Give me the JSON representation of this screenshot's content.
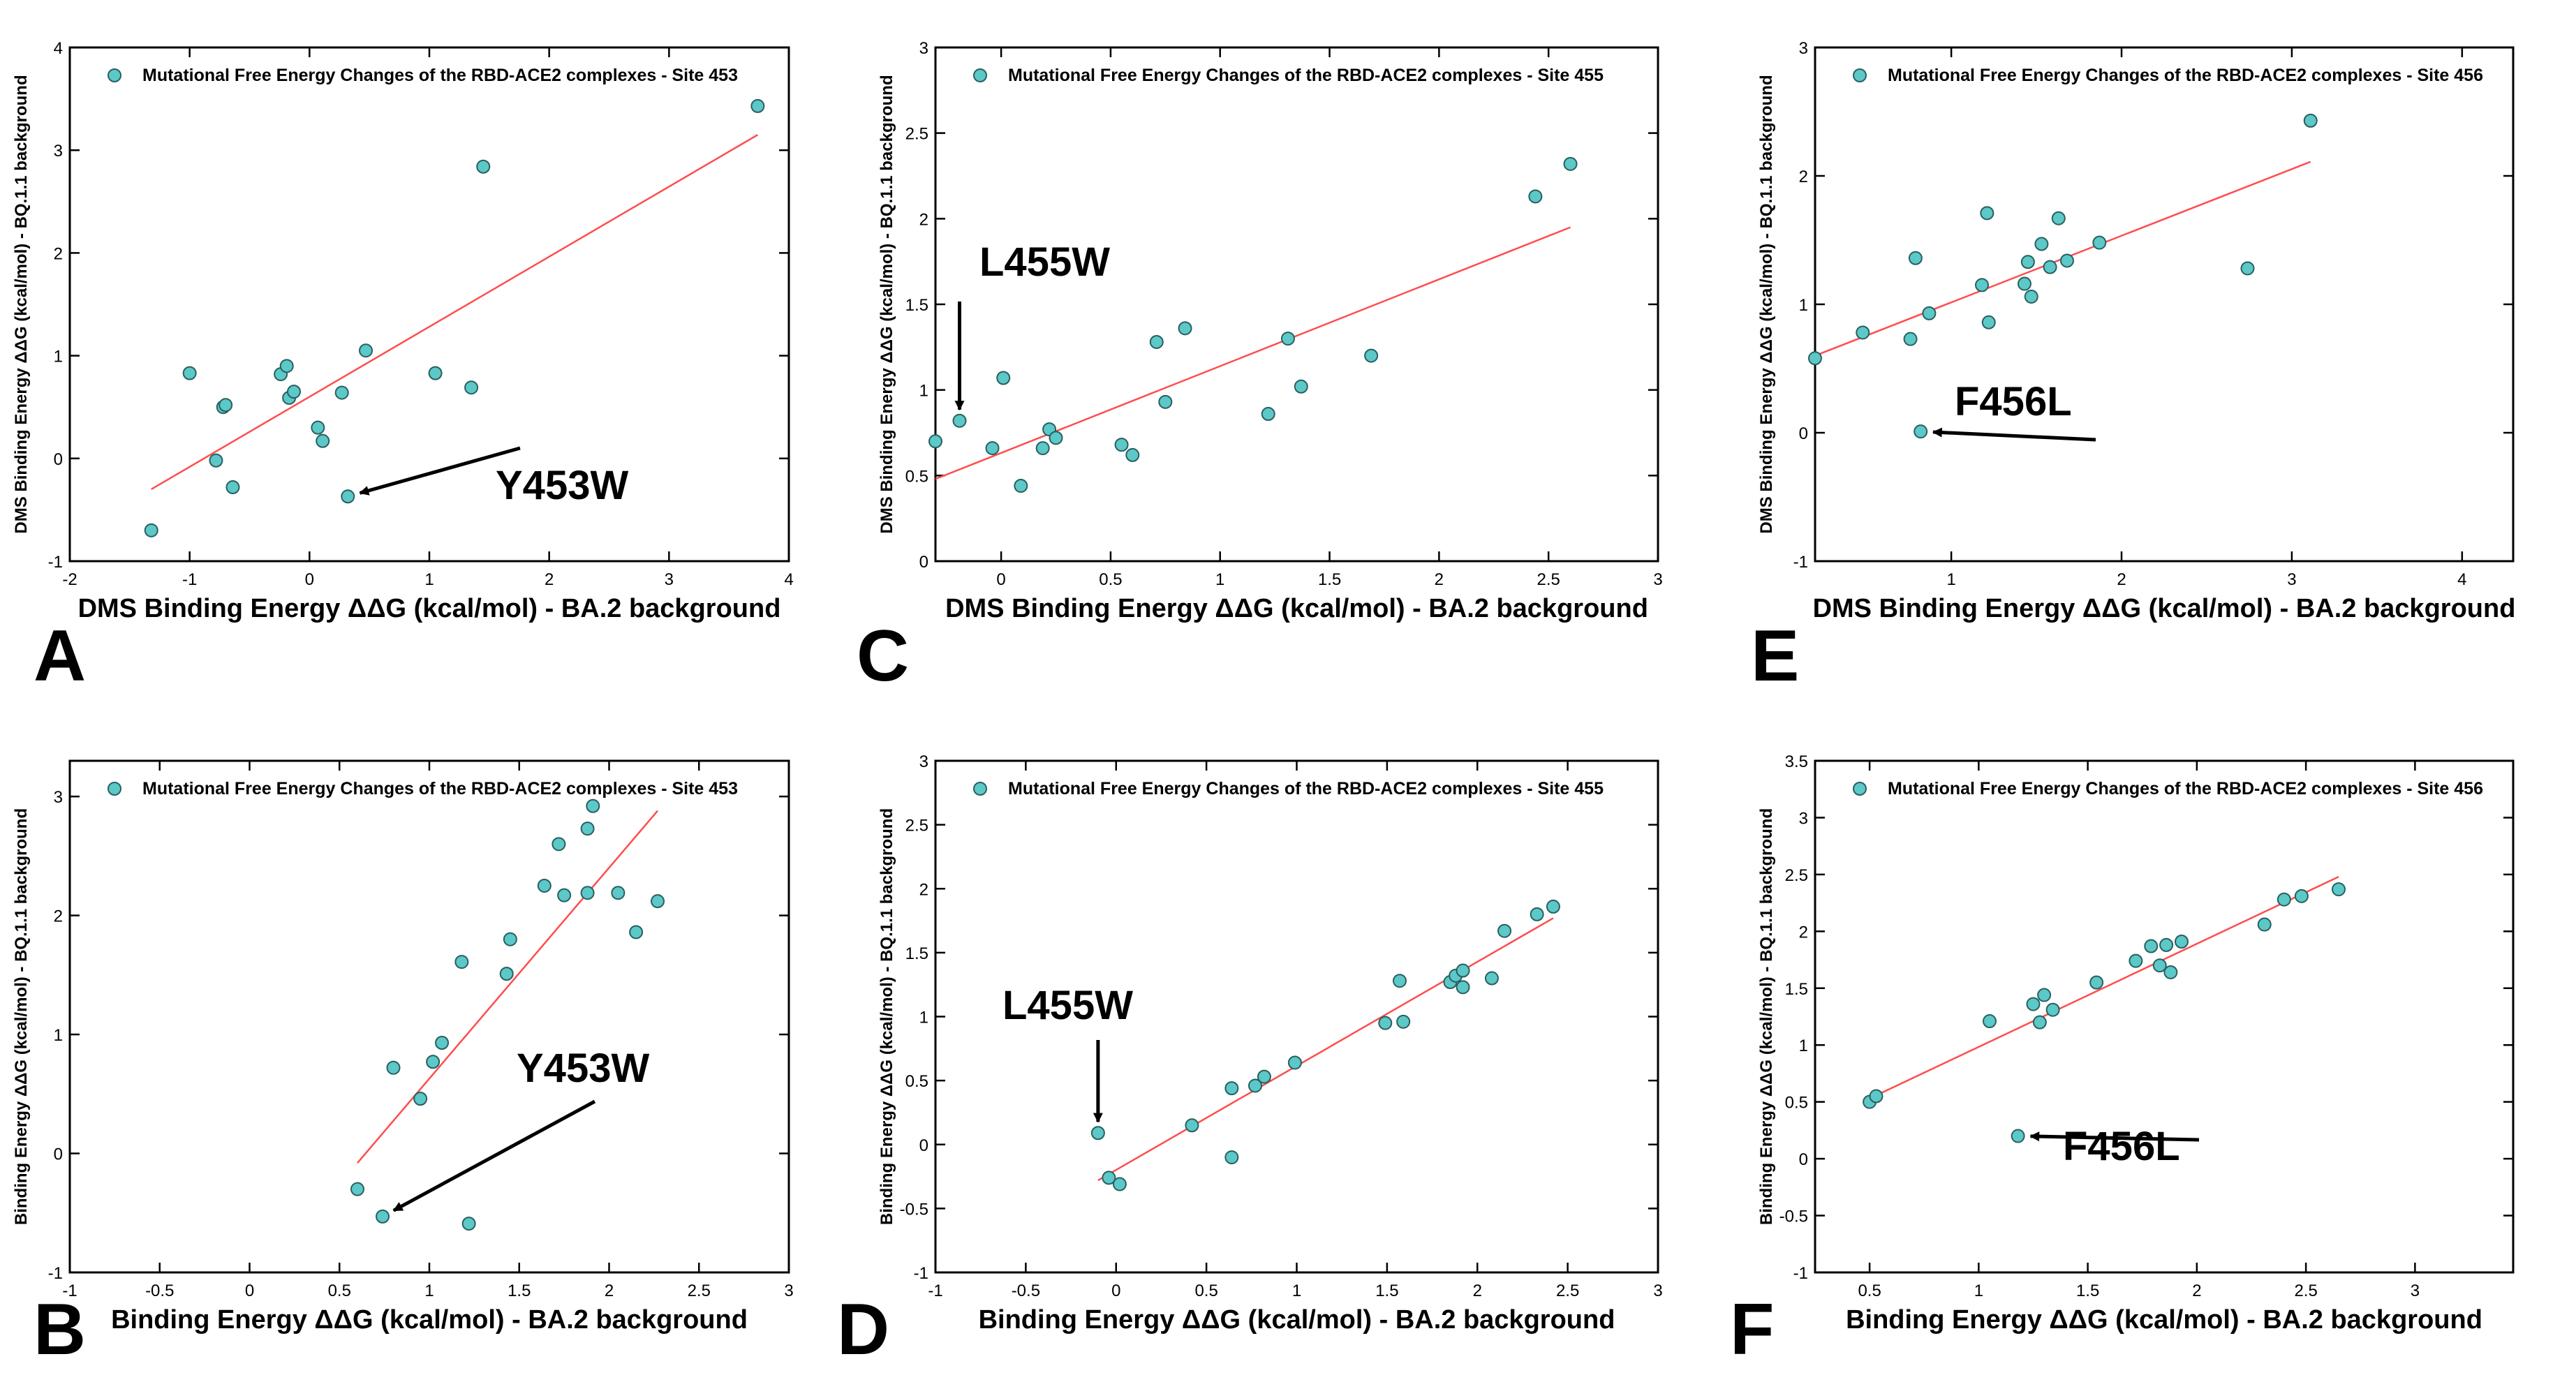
{
  "chart_data": [
    {
      "type": "scatter",
      "panel_label": "A",
      "xlabel": "DMS Binding Energy ΔΔG (kcal/mol) -  BA.2 background",
      "ylabel": "DMS Binding Energy ΔΔG (kcal/mol) - BQ.1.1 background",
      "xlim": [
        -2,
        4
      ],
      "ylim": [
        -1,
        4
      ],
      "xticks": [
        -2,
        -1,
        0,
        1,
        2,
        3,
        4
      ],
      "yticks": [
        -1,
        0,
        1,
        2,
        3,
        4
      ],
      "legend": "Mutational Free Energy Changes of the RBD-ACE2 complexes - Site 453",
      "legend_position": "top-left",
      "series": [
        {
          "points": [
            [
              -1.32,
              -0.7
            ],
            [
              -1.0,
              0.83
            ],
            [
              -0.78,
              -0.02
            ],
            [
              -0.72,
              0.5
            ],
            [
              -0.7,
              0.52
            ],
            [
              -0.64,
              -0.28
            ],
            [
              -0.24,
              0.82
            ],
            [
              -0.19,
              0.9
            ],
            [
              -0.17,
              0.59
            ],
            [
              -0.13,
              0.65
            ],
            [
              0.07,
              0.3
            ],
            [
              0.11,
              0.17
            ],
            [
              0.27,
              0.64
            ],
            [
              0.32,
              -0.37
            ],
            [
              0.47,
              1.05
            ],
            [
              1.05,
              0.83
            ],
            [
              1.35,
              0.69
            ],
            [
              1.45,
              2.84
            ],
            [
              3.74,
              3.43
            ]
          ]
        }
      ],
      "fit_line": [
        [
          -1.32,
          -0.3
        ],
        [
          3.74,
          3.15
        ]
      ],
      "annotation": {
        "text": "Y453W",
        "point": [
          0.32,
          -0.37
        ]
      }
    },
    {
      "type": "scatter",
      "panel_label": "C",
      "xlabel": "DMS Binding Energy ΔΔG (kcal/mol) -  BA.2 background",
      "ylabel": "DMS Binding Energy ΔΔG (kcal/mol) - BQ.1.1 background",
      "xlim": [
        -0.3,
        3
      ],
      "ylim": [
        0,
        3
      ],
      "xticks": [
        0,
        0.5,
        1,
        1.5,
        2,
        2.5,
        3
      ],
      "yticks": [
        0,
        0.5,
        1,
        1.5,
        2,
        2.5,
        3
      ],
      "legend": "Mutational Free Energy Changes of the RBD-ACE2 complexes - Site 455",
      "legend_position": "top-left",
      "series": [
        {
          "points": [
            [
              -0.4,
              0.7
            ],
            [
              -0.19,
              0.82
            ],
            [
              -0.04,
              0.66
            ],
            [
              0.01,
              1.07
            ],
            [
              0.09,
              0.44
            ],
            [
              0.19,
              0.66
            ],
            [
              0.22,
              0.77
            ],
            [
              0.25,
              0.72
            ],
            [
              0.55,
              0.68
            ],
            [
              0.6,
              0.62
            ],
            [
              0.71,
              1.28
            ],
            [
              0.75,
              0.93
            ],
            [
              0.84,
              1.36
            ],
            [
              1.22,
              0.86
            ],
            [
              1.31,
              1.3
            ],
            [
              1.37,
              1.02
            ],
            [
              1.69,
              1.2
            ],
            [
              2.44,
              2.13
            ],
            [
              2.6,
              2.32
            ]
          ]
        }
      ],
      "fit_line": [
        [
          -0.3,
          0.48
        ],
        [
          2.6,
          1.95
        ]
      ],
      "annotation": {
        "text": "L455W",
        "point": [
          -0.19,
          0.82
        ]
      }
    },
    {
      "type": "scatter",
      "panel_label": "E",
      "xlabel": "DMS Binding Energy ΔΔG (kcal/mol) -  BA.2 background",
      "ylabel": "DMS Binding Energy ΔΔG (kcal/mol) - BQ.1.1 background",
      "xlim": [
        0.2,
        4.3
      ],
      "ylim": [
        -1,
        3
      ],
      "xticks": [
        1,
        2,
        3,
        4
      ],
      "yticks": [
        -1,
        0,
        1,
        2,
        3
      ],
      "legend": "Mutational Free Energy Changes of the RBD-ACE2 complexes - Site 456",
      "legend_position": "top-left",
      "series": [
        {
          "points": [
            [
              0.2,
              0.58
            ],
            [
              0.48,
              0.78
            ],
            [
              0.76,
              0.73
            ],
            [
              0.79,
              1.36
            ],
            [
              0.82,
              0.01
            ],
            [
              0.87,
              0.93
            ],
            [
              1.18,
              1.15
            ],
            [
              1.21,
              1.71
            ],
            [
              1.22,
              0.86
            ],
            [
              1.43,
              1.16
            ],
            [
              1.45,
              1.33
            ],
            [
              1.47,
              1.06
            ],
            [
              1.53,
              1.47
            ],
            [
              1.58,
              1.29
            ],
            [
              1.63,
              1.67
            ],
            [
              1.68,
              1.34
            ],
            [
              1.87,
              1.48
            ],
            [
              2.74,
              1.28
            ],
            [
              3.11,
              2.43
            ]
          ]
        }
      ],
      "fit_line": [
        [
          0.2,
          0.6
        ],
        [
          3.11,
          2.11
        ]
      ],
      "annotation": {
        "text": "F456L",
        "point": [
          0.82,
          0.01
        ]
      }
    },
    {
      "type": "scatter",
      "panel_label": "B",
      "xlabel": "Binding Energy ΔΔG (kcal/mol) -  BA.2 background",
      "ylabel": "Binding Energy ΔΔG (kcal/mol) - BQ.1.1 background",
      "xlim": [
        -1,
        3
      ],
      "ylim": [
        -1,
        3.3
      ],
      "xticks": [
        -1,
        -0.5,
        0,
        0.5,
        1,
        1.5,
        2,
        2.5,
        3
      ],
      "yticks": [
        -1,
        0,
        1,
        2,
        3
      ],
      "legend": "Mutational Free Energy Changes of the RBD-ACE2 complexes - Site 453",
      "legend_position": "top-left",
      "series": [
        {
          "points": [
            [
              0.6,
              -0.3
            ],
            [
              0.74,
              -0.53
            ],
            [
              0.8,
              0.72
            ],
            [
              0.95,
              0.46
            ],
            [
              1.02,
              0.77
            ],
            [
              1.07,
              0.93
            ],
            [
              1.18,
              1.61
            ],
            [
              1.22,
              -0.59
            ],
            [
              1.43,
              1.51
            ],
            [
              1.45,
              1.8
            ],
            [
              1.64,
              2.25
            ],
            [
              1.72,
              2.6
            ],
            [
              1.75,
              2.17
            ],
            [
              1.88,
              2.19
            ],
            [
              1.88,
              2.73
            ],
            [
              1.91,
              2.92
            ],
            [
              2.05,
              2.19
            ],
            [
              2.15,
              1.86
            ],
            [
              2.27,
              2.12
            ]
          ]
        }
      ],
      "fit_line": [
        [
          0.6,
          -0.08
        ],
        [
          2.27,
          2.88
        ]
      ],
      "annotation": {
        "text": "Y453W",
        "point": [
          0.74,
          -0.53
        ]
      }
    },
    {
      "type": "scatter",
      "panel_label": "D",
      "xlabel": "Binding Energy ΔΔG (kcal/mol) -  BA.2 background",
      "ylabel": "Binding Energy ΔΔG (kcal/mol) - BQ.1.1 background",
      "xlim": [
        -1,
        3
      ],
      "ylim": [
        -1,
        3
      ],
      "xticks": [
        -1,
        -0.5,
        0,
        0.5,
        1,
        1.5,
        2,
        2.5,
        3
      ],
      "yticks": [
        -1,
        -0.5,
        0,
        0.5,
        1,
        1.5,
        2,
        2.5,
        3
      ],
      "legend": "Mutational Free Energy Changes of the RBD-ACE2 complexes - Site 455",
      "legend_position": "top-left",
      "series": [
        {
          "points": [
            [
              -0.1,
              0.09
            ],
            [
              -0.04,
              -0.26
            ],
            [
              0.02,
              -0.31
            ],
            [
              0.42,
              0.15
            ],
            [
              0.64,
              0.44
            ],
            [
              0.64,
              -0.1
            ],
            [
              0.77,
              0.46
            ],
            [
              0.82,
              0.53
            ],
            [
              0.99,
              0.64
            ],
            [
              1.49,
              0.95
            ],
            [
              1.57,
              1.28
            ],
            [
              1.59,
              0.96
            ],
            [
              1.85,
              1.27
            ],
            [
              1.88,
              1.32
            ],
            [
              1.92,
              1.36
            ],
            [
              1.92,
              1.23
            ],
            [
              2.08,
              1.3
            ],
            [
              2.15,
              1.67
            ],
            [
              2.33,
              1.8
            ],
            [
              2.42,
              1.86
            ]
          ]
        }
      ],
      "fit_line": [
        [
          -0.1,
          -0.28
        ],
        [
          2.42,
          1.77
        ]
      ],
      "annotation": {
        "text": "L455W",
        "point": [
          -0.1,
          0.09
        ]
      }
    },
    {
      "type": "scatter",
      "panel_label": "F",
      "xlabel": "Binding Energy ΔΔG (kcal/mol) -  BA.2 background",
      "ylabel": "Binding Energy ΔΔG (kcal/mol) - BQ.1.1 background",
      "xlim": [
        0.25,
        3.45
      ],
      "ylim": [
        -1,
        3.5
      ],
      "xticks": [
        0.5,
        1,
        1.5,
        2,
        2.5,
        3
      ],
      "yticks": [
        -1,
        -0.5,
        0,
        0.5,
        1,
        1.5,
        2,
        2.5,
        3,
        3.5
      ],
      "legend": "Mutational Free Energy Changes of the RBD-ACE2 complexes - Site 456",
      "legend_position": "top-left",
      "series": [
        {
          "points": [
            [
              0.5,
              0.5
            ],
            [
              0.53,
              0.55
            ],
            [
              1.05,
              1.21
            ],
            [
              1.18,
              0.2
            ],
            [
              1.25,
              1.36
            ],
            [
              1.28,
              1.2
            ],
            [
              1.3,
              1.44
            ],
            [
              1.34,
              1.31
            ],
            [
              1.54,
              1.55
            ],
            [
              1.72,
              1.74
            ],
            [
              1.79,
              1.87
            ],
            [
              1.83,
              1.7
            ],
            [
              1.86,
              1.88
            ],
            [
              1.88,
              1.64
            ],
            [
              1.93,
              1.91
            ],
            [
              2.31,
              2.06
            ],
            [
              2.4,
              2.28
            ],
            [
              2.48,
              2.31
            ],
            [
              2.65,
              2.37
            ]
          ]
        }
      ],
      "fit_line": [
        [
          0.5,
          0.53
        ],
        [
          2.65,
          2.48
        ]
      ],
      "annotation": {
        "text": "F456L",
        "point": [
          1.18,
          0.2
        ]
      }
    }
  ]
}
